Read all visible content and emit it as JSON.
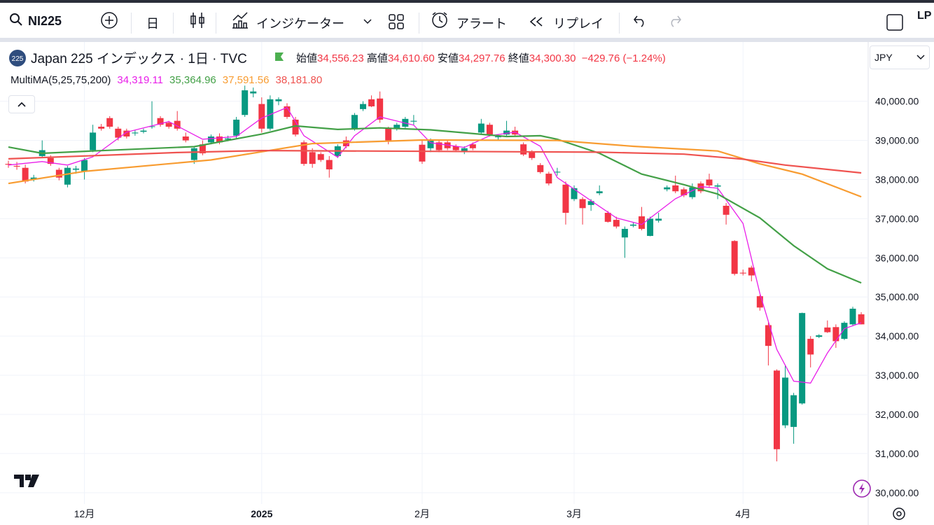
{
  "toolbar": {
    "symbol": "NI225",
    "interval": "日",
    "indicators": "インジケーター",
    "alerts": "アラート",
    "replay": "リプレイ",
    "account": "LP"
  },
  "legend": {
    "badge": "225",
    "title": "Japan 225 インデックス · 1日 · TVC",
    "open_label": "始値",
    "open": "34,556.23",
    "high_label": "高値",
    "high": "34,610.60",
    "low_label": "安値",
    "low": "34,297.76",
    "close_label": "終値",
    "close": "34,300.30",
    "change": "−429.76 (−1.24%)",
    "indicator": "MultiMA(5,25,75,200)"
  },
  "currency": "JPY",
  "chart_data": {
    "type": "candlestick",
    "up_color": "#089981",
    "down_color": "#f23645",
    "grid": true,
    "candles": [
      [
        38400,
        38480,
        38300,
        38380
      ],
      [
        38350,
        38450,
        38250,
        38330
      ],
      [
        38300,
        38380,
        37900,
        37950
      ],
      [
        38000,
        38120,
        37950,
        38050
      ],
      [
        38600,
        39000,
        38550,
        38750
      ],
      [
        38550,
        38620,
        38350,
        38400
      ],
      [
        38250,
        38300,
        37980,
        38050
      ],
      [
        37870,
        38350,
        37800,
        38300
      ],
      [
        38250,
        38350,
        38150,
        38280
      ],
      [
        38200,
        38550,
        38000,
        38500
      ],
      [
        38750,
        39400,
        38700,
        39200
      ],
      [
        39350,
        39420,
        39250,
        39300
      ],
      [
        39570,
        39620,
        39300,
        39350
      ],
      [
        39300,
        39350,
        39000,
        39070
      ],
      [
        39250,
        39300,
        39050,
        39100
      ],
      [
        39180,
        39260,
        39120,
        39200
      ],
      [
        39220,
        39300,
        39180,
        39250
      ],
      [
        39350,
        40000,
        39300,
        39360
      ],
      [
        39570,
        39620,
        39350,
        39400
      ],
      [
        39450,
        39500,
        39300,
        39350
      ],
      [
        39500,
        39750,
        39250,
        39300
      ],
      [
        39100,
        39200,
        38950,
        39000
      ],
      [
        38500,
        38850,
        38400,
        38800
      ],
      [
        38900,
        39000,
        38620,
        38670
      ],
      [
        38950,
        39150,
        38900,
        39100
      ],
      [
        39100,
        39180,
        38900,
        38950
      ],
      [
        39020,
        39120,
        38980,
        39050
      ],
      [
        39120,
        39600,
        39050,
        39530
      ],
      [
        39650,
        40400,
        39600,
        40280
      ],
      [
        40200,
        40350,
        40100,
        40250
      ],
      [
        39930,
        40100,
        39200,
        39300
      ],
      [
        39300,
        40150,
        39250,
        40050
      ],
      [
        40000,
        40100,
        39900,
        40050
      ],
      [
        39870,
        39950,
        39550,
        39600
      ],
      [
        39530,
        39600,
        39100,
        39150
      ],
      [
        38950,
        39000,
        38350,
        38400
      ],
      [
        38700,
        38800,
        38300,
        38400
      ],
      [
        38650,
        38700,
        38450,
        38500
      ],
      [
        38500,
        38600,
        38050,
        38260
      ],
      [
        38600,
        38900,
        38550,
        38850
      ],
      [
        39000,
        39100,
        38800,
        38850
      ],
      [
        39300,
        39700,
        39250,
        39650
      ],
      [
        39800,
        40000,
        39750,
        39930
      ],
      [
        40050,
        40150,
        39850,
        39870
      ],
      [
        40070,
        40250,
        39450,
        39530
      ],
      [
        39300,
        39350,
        38900,
        39000
      ],
      [
        39300,
        39450,
        39250,
        39400
      ],
      [
        39350,
        39600,
        39300,
        39550
      ],
      [
        39480,
        39650,
        39400,
        39500
      ],
      [
        38890,
        39000,
        38400,
        38460
      ],
      [
        38800,
        39050,
        38700,
        39000
      ],
      [
        38950,
        39000,
        38700,
        38750
      ],
      [
        38950,
        39000,
        38750,
        38800
      ],
      [
        38850,
        38900,
        38700,
        38750
      ],
      [
        38700,
        38850,
        38650,
        38800
      ],
      [
        38900,
        38950,
        38750,
        38800
      ],
      [
        39200,
        39550,
        39150,
        39430
      ],
      [
        39400,
        39450,
        39100,
        39150
      ],
      [
        39080,
        39150,
        39000,
        39100
      ],
      [
        39150,
        39500,
        39100,
        39250
      ],
      [
        39250,
        39350,
        39100,
        39150
      ],
      [
        38900,
        38950,
        38600,
        38640
      ],
      [
        38700,
        38750,
        38500,
        38550
      ],
      [
        38370,
        38420,
        38150,
        38190
      ],
      [
        38150,
        38200,
        37850,
        37900
      ],
      [
        38180,
        38300,
        38100,
        38200
      ],
      [
        37870,
        37950,
        36850,
        37150
      ],
      [
        37500,
        37850,
        37450,
        37780
      ],
      [
        37500,
        37550,
        36850,
        37270
      ],
      [
        37350,
        37500,
        37200,
        37450
      ],
      [
        37650,
        37850,
        37600,
        37700
      ],
      [
        37150,
        37200,
        36900,
        36920
      ],
      [
        36970,
        37050,
        36750,
        36800
      ],
      [
        36520,
        36800,
        36000,
        36740
      ],
      [
        36820,
        36900,
        36780,
        36850
      ],
      [
        37060,
        37300,
        36700,
        36740
      ],
      [
        36560,
        37050,
        36550,
        37000
      ],
      [
        36950,
        37150,
        36900,
        37000
      ],
      [
        37750,
        37850,
        37700,
        37800
      ],
      [
        37850,
        38100,
        37650,
        37700
      ],
      [
        37750,
        37800,
        37550,
        37600
      ],
      [
        37550,
        37900,
        37500,
        37800
      ],
      [
        37900,
        37950,
        37650,
        37700
      ],
      [
        38000,
        38150,
        37800,
        37850
      ],
      [
        37820,
        37900,
        37500,
        37850
      ],
      [
        37330,
        37400,
        36850,
        37100
      ],
      [
        36430,
        36450,
        35550,
        35590
      ],
      [
        35620,
        35700,
        35550,
        35600
      ],
      [
        35750,
        35800,
        35400,
        35550
      ],
      [
        35020,
        35050,
        34650,
        34730
      ],
      [
        34280,
        34350,
        33250,
        33750
      ],
      [
        33120,
        33150,
        30800,
        31110
      ],
      [
        31720,
        33250,
        31650,
        32940
      ],
      [
        31680,
        32550,
        31250,
        32490
      ],
      [
        32280,
        34600,
        32250,
        34590
      ],
      [
        33930,
        34000,
        33200,
        33530
      ],
      [
        33980,
        34050,
        33950,
        34020
      ],
      [
        34220,
        34400,
        34080,
        34100
      ],
      [
        34230,
        34300,
        33700,
        33870
      ],
      [
        33930,
        34380,
        33900,
        34340
      ],
      [
        34300,
        34750,
        34250,
        34700
      ],
      [
        34556.23,
        34610.6,
        34297.76,
        34300.3
      ]
    ],
    "series": [
      {
        "color": "#e91ee9",
        "legend_value": "34,319.11",
        "x": [
          0,
          4,
          7,
          10,
          14,
          19,
          23,
          27,
          30,
          33,
          35,
          39,
          41,
          44,
          48,
          50,
          54,
          57,
          60,
          63,
          65,
          69,
          72,
          75,
          79,
          82,
          84,
          87,
          89,
          91,
          93,
          95,
          97,
          99,
          101
        ],
        "values": [
          38370,
          38460,
          38370,
          38580,
          39210,
          39480,
          39030,
          39100,
          39570,
          39840,
          39120,
          38570,
          39120,
          39600,
          39390,
          38940,
          38820,
          39120,
          39210,
          38850,
          38050,
          37460,
          37020,
          36850,
          37510,
          37820,
          37780,
          36880,
          35090,
          33660,
          32850,
          32800,
          33570,
          34190,
          34340
        ]
      },
      {
        "color": "#43a047",
        "legend_value": "35,364.96",
        "x": [
          0,
          4,
          10,
          22,
          30,
          34,
          39,
          44,
          50,
          59,
          63,
          65,
          70,
          75,
          80,
          84,
          89,
          93,
          97,
          101
        ],
        "values": [
          38830,
          38670,
          38730,
          38840,
          39160,
          39370,
          39280,
          39320,
          39270,
          39100,
          39120,
          39030,
          38670,
          38140,
          37870,
          37630,
          37020,
          36310,
          35720,
          35360
        ]
      },
      {
        "color": "#f89c31",
        "legend_value": "37,591.56",
        "x": [
          0,
          9,
          24,
          30,
          36,
          49,
          65,
          74,
          84,
          89,
          94,
          101
        ],
        "values": [
          37900,
          38210,
          38500,
          38710,
          38920,
          39010,
          39000,
          38850,
          38730,
          38400,
          38140,
          37560
        ]
      },
      {
        "color": "#ef5350",
        "legend_value": "38,181.80",
        "x": [
          0,
          20,
          30,
          50,
          70,
          80,
          87,
          92,
          101
        ],
        "values": [
          38530,
          38690,
          38740,
          38720,
          38700,
          38650,
          38520,
          38370,
          38170
        ]
      }
    ],
    "ylim": [
      29800,
      41550
    ],
    "yticks": [
      {
        "value": 30000,
        "label": "30,000.00"
      },
      {
        "value": 31000,
        "label": "31,000.00"
      },
      {
        "value": 32000,
        "label": "32,000.00"
      },
      {
        "value": 33000,
        "label": "33,000.00"
      },
      {
        "value": 34000,
        "label": "34,000.00"
      },
      {
        "value": 35000,
        "label": "35,000.00"
      },
      {
        "value": 36000,
        "label": "36,000.00"
      },
      {
        "value": 37000,
        "label": "37,000.00"
      },
      {
        "value": 38000,
        "label": "38,000.00"
      },
      {
        "value": 39000,
        "label": "39,000.00"
      },
      {
        "value": 40000,
        "label": "40,000.00"
      }
    ],
    "xticks": [
      {
        "value": 9,
        "label": "12月"
      },
      {
        "value": 30,
        "label": "2025"
      },
      {
        "value": 49,
        "label": "2月"
      },
      {
        "value": 67,
        "label": "3月"
      },
      {
        "value": 87,
        "label": "4月"
      }
    ]
  }
}
